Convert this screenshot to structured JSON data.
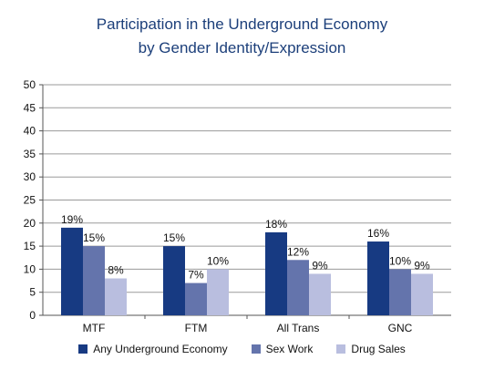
{
  "chart_data": {
    "type": "bar",
    "title_line1": "Participation in the Underground Economy",
    "title_line2": "by Gender Identity/Expression",
    "xlabel": "",
    "ylabel": "",
    "ylim": [
      0,
      50
    ],
    "yticks": [
      0,
      5,
      10,
      15,
      20,
      25,
      30,
      35,
      40,
      45,
      50
    ],
    "grid": true,
    "legend_position": "bottom",
    "categories": [
      "MTF",
      "FTM",
      "All Trans",
      "GNC"
    ],
    "series": [
      {
        "name": "Any Underground Economy",
        "color": "#173a82",
        "values": [
          19,
          15,
          18,
          16
        ],
        "labels": [
          "19%",
          "15%",
          "18%",
          "16%"
        ]
      },
      {
        "name": "Sex Work",
        "color": "#6474ac",
        "values": [
          15,
          7,
          12,
          10
        ],
        "labels": [
          "15%",
          "7%",
          "12%",
          "10%"
        ]
      },
      {
        "name": "Drug Sales",
        "color": "#b9bedf",
        "values": [
          8,
          10,
          9,
          9
        ],
        "labels": [
          "8%",
          "10%",
          "9%",
          "9%"
        ]
      }
    ]
  }
}
